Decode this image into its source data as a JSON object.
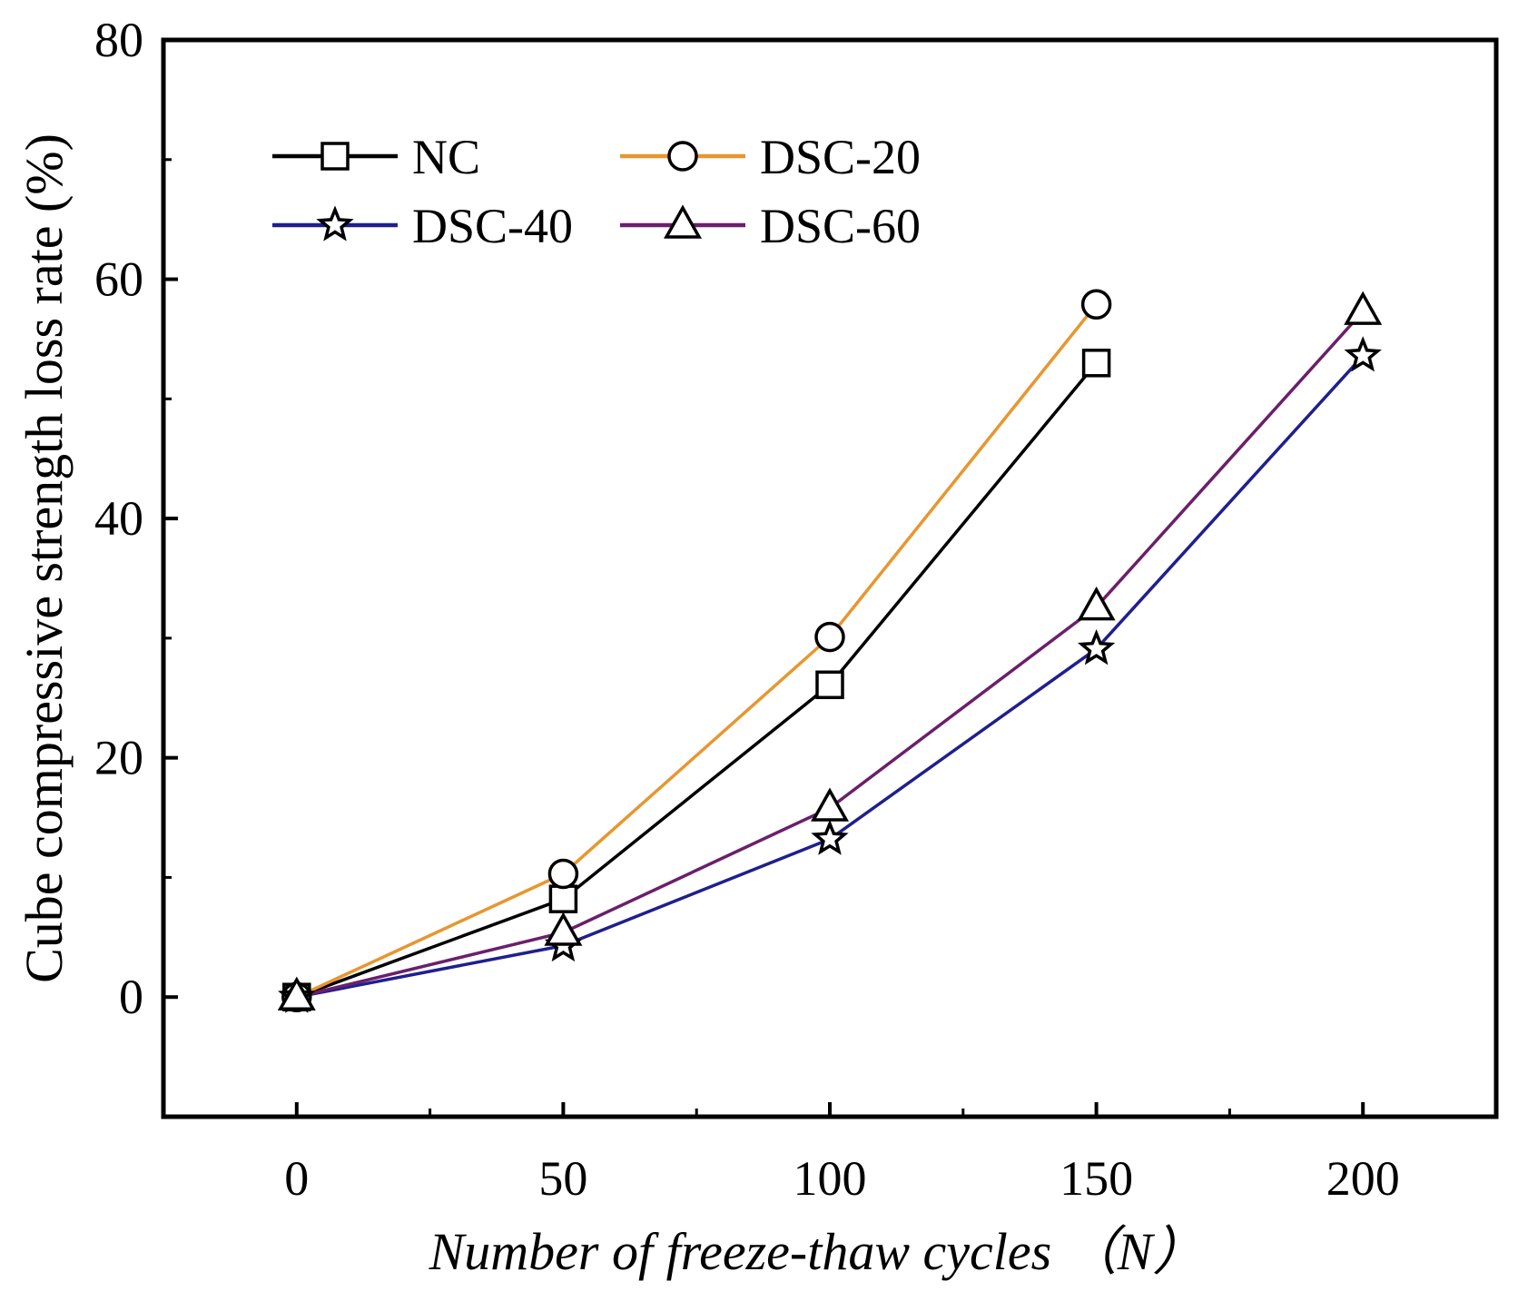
{
  "chart_data": {
    "type": "line",
    "title": "",
    "xlabel": "Number of freeze-thaw cycles （N）",
    "ylabel": "Cube compressive strength loss rate (%)",
    "xlim": [
      -25,
      225
    ],
    "ylim": [
      -10,
      80
    ],
    "x_ticks": [
      0,
      50,
      100,
      150,
      200
    ],
    "y_ticks": [
      0,
      20,
      40,
      60,
      80
    ],
    "x_tick_labels": [
      "0",
      "50",
      "100",
      "150",
      "200"
    ],
    "y_tick_labels": [
      "0",
      "20",
      "40",
      "60",
      "80"
    ],
    "grid": false,
    "legend_position": "top-left",
    "series": [
      {
        "name": "NC",
        "color": "#000000",
        "marker": "square",
        "x": [
          0,
          50,
          100,
          150
        ],
        "y": [
          0,
          8.2,
          26.1,
          53.0
        ]
      },
      {
        "name": "DSC-20",
        "color": "#e8962e",
        "marker": "circle",
        "x": [
          0,
          50,
          100,
          150
        ],
        "y": [
          0,
          10.3,
          30.1,
          57.9
        ]
      },
      {
        "name": "DSC-40",
        "color": "#1f1f8f",
        "marker": "star",
        "x": [
          0,
          50,
          100,
          150,
          200
        ],
        "y": [
          0,
          4.3,
          13.2,
          29.1,
          53.6
        ]
      },
      {
        "name": "DSC-60",
        "color": "#6b1f6b",
        "marker": "triangle",
        "x": [
          0,
          50,
          100,
          150,
          200
        ],
        "y": [
          0,
          5.4,
          15.8,
          32.6,
          57.3
        ]
      }
    ]
  }
}
